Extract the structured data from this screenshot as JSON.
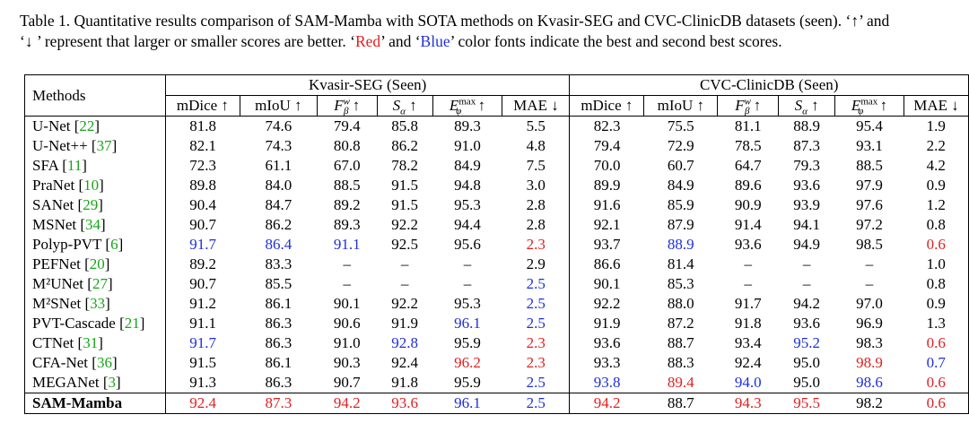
{
  "caption": {
    "line1": "Table 1. Quantitative results comparison of SAM-Mamba with SOTA methods on Kvasir-SEG and CVC-ClinicDB datasets (seen). ‘↑’ and",
    "line2_a": "‘↓ ’ represent that larger or smaller scores are better. ‘",
    "red_word": "Red",
    "line2_b": "’ and ‘",
    "blue_word": "Blue",
    "line2_c": "’ color fonts indicate the best and second best scores."
  },
  "table": {
    "methods_header": "Methods",
    "groups": [
      "Kvasir-SEG (Seen)",
      "CVC-ClinicDB (Seen)"
    ],
    "columns": [
      "mDice ↑",
      "mIoU ↑",
      "F_β^w ↑",
      "S_α ↑",
      "E_φ^max ↑",
      "MAE ↓"
    ],
    "rows": [
      {
        "name": "U-Net",
        "cite": "22",
        "bold": false,
        "vals": [
          "81.8",
          "74.6",
          "79.4",
          "85.8",
          "89.3",
          "5.5",
          "82.3",
          "75.5",
          "81.1",
          "88.9",
          "95.4",
          "1.9"
        ],
        "colors": [
          "",
          "",
          "",
          "",
          "",
          "",
          "",
          "",
          "",
          "",
          "",
          ""
        ]
      },
      {
        "name": "U-Net++",
        "cite": "37",
        "bold": false,
        "vals": [
          "82.1",
          "74.3",
          "80.8",
          "86.2",
          "91.0",
          "4.8",
          "79.4",
          "72.9",
          "78.5",
          "87.3",
          "93.1",
          "2.2"
        ],
        "colors": [
          "",
          "",
          "",
          "",
          "",
          "",
          "",
          "",
          "",
          "",
          "",
          ""
        ]
      },
      {
        "name": "SFA",
        "cite": "11",
        "bold": false,
        "vals": [
          "72.3",
          "61.1",
          "67.0",
          "78.2",
          "84.9",
          "7.5",
          "70.0",
          "60.7",
          "64.7",
          "79.3",
          "88.5",
          "4.2"
        ],
        "colors": [
          "",
          "",
          "",
          "",
          "",
          "",
          "",
          "",
          "",
          "",
          "",
          ""
        ]
      },
      {
        "name": "PraNet",
        "cite": "10",
        "bold": false,
        "vals": [
          "89.8",
          "84.0",
          "88.5",
          "91.5",
          "94.8",
          "3.0",
          "89.9",
          "84.9",
          "89.6",
          "93.6",
          "97.9",
          "0.9"
        ],
        "colors": [
          "",
          "",
          "",
          "",
          "",
          "",
          "",
          "",
          "",
          "",
          "",
          ""
        ]
      },
      {
        "name": "SANet",
        "cite": "29",
        "bold": false,
        "vals": [
          "90.4",
          "84.7",
          "89.2",
          "91.5",
          "95.3",
          "2.8",
          "91.6",
          "85.9",
          "90.9",
          "93.9",
          "97.6",
          "1.2"
        ],
        "colors": [
          "",
          "",
          "",
          "",
          "",
          "",
          "",
          "",
          "",
          "",
          "",
          ""
        ]
      },
      {
        "name": "MSNet",
        "cite": "34",
        "bold": false,
        "vals": [
          "90.7",
          "86.2",
          "89.3",
          "92.2",
          "94.4",
          "2.8",
          "92.1",
          "87.9",
          "91.4",
          "94.1",
          "97.2",
          "0.8"
        ],
        "colors": [
          "",
          "",
          "",
          "",
          "",
          "",
          "",
          "",
          "",
          "",
          "",
          ""
        ]
      },
      {
        "name": "Polyp-PVT",
        "cite": "6",
        "bold": false,
        "vals": [
          "91.7",
          "86.4",
          "91.1",
          "92.5",
          "95.6",
          "2.3",
          "93.7",
          "88.9",
          "93.6",
          "94.9",
          "98.5",
          "0.6"
        ],
        "colors": [
          "b",
          "b",
          "b",
          "",
          "",
          "r",
          "",
          "b",
          "",
          "",
          "",
          "r"
        ]
      },
      {
        "name": "PEFNet",
        "cite": "20",
        "bold": false,
        "vals": [
          "89.2",
          "83.3",
          "–",
          "–",
          "–",
          "2.9",
          "86.6",
          "81.4",
          "–",
          "–",
          "–",
          "1.0"
        ],
        "colors": [
          "",
          "",
          "",
          "",
          "",
          "",
          "",
          "",
          "",
          "",
          "",
          ""
        ]
      },
      {
        "name": "M²UNet",
        "cite": "27",
        "bold": false,
        "vals": [
          "90.7",
          "85.5",
          "–",
          "–",
          "–",
          "2.5",
          "90.1",
          "85.3",
          "–",
          "–",
          "–",
          "0.8"
        ],
        "colors": [
          "",
          "",
          "",
          "",
          "",
          "b",
          "",
          "",
          "",
          "",
          "",
          ""
        ]
      },
      {
        "name": "M²SNet",
        "cite": "33",
        "bold": false,
        "vals": [
          "91.2",
          "86.1",
          "90.1",
          "92.2",
          "95.3",
          "2.5",
          "92.2",
          "88.0",
          "91.7",
          "94.2",
          "97.0",
          "0.9"
        ],
        "colors": [
          "",
          "",
          "",
          "",
          "",
          "b",
          "",
          "",
          "",
          "",
          "",
          ""
        ]
      },
      {
        "name": "PVT-Cascade",
        "cite": "21",
        "bold": false,
        "vals": [
          "91.1",
          "86.3",
          "90.6",
          "91.9",
          "96.1",
          "2.5",
          "91.9",
          "87.2",
          "91.8",
          "93.6",
          "96.9",
          "1.3"
        ],
        "colors": [
          "",
          "",
          "",
          "",
          "b",
          "b",
          "",
          "",
          "",
          "",
          "",
          ""
        ]
      },
      {
        "name": "CTNet",
        "cite": "31",
        "bold": false,
        "vals": [
          "91.7",
          "86.3",
          "91.0",
          "92.8",
          "95.9",
          "2.3",
          "93.6",
          "88.7",
          "93.4",
          "95.2",
          "98.3",
          "0.6"
        ],
        "colors": [
          "b",
          "",
          "",
          "b",
          "",
          "r",
          "",
          "",
          "",
          "b",
          "",
          "r"
        ]
      },
      {
        "name": "CFA-Net",
        "cite": "36",
        "bold": false,
        "vals": [
          "91.5",
          "86.1",
          "90.3",
          "92.4",
          "96.2",
          "2.3",
          "93.3",
          "88.3",
          "92.4",
          "95.0",
          "98.9",
          "0.7"
        ],
        "colors": [
          "",
          "",
          "",
          "",
          "r",
          "r",
          "",
          "",
          "",
          "",
          "r",
          "b"
        ]
      },
      {
        "name": "MEGANet",
        "cite": "3",
        "bold": false,
        "vals": [
          "91.3",
          "86.3",
          "90.7",
          "91.8",
          "95.9",
          "2.5",
          "93.8",
          "89.4",
          "94.0",
          "95.0",
          "98.6",
          "0.6"
        ],
        "colors": [
          "",
          "",
          "",
          "",
          "",
          "b",
          "b",
          "r",
          "b",
          "",
          "b",
          "r"
        ]
      },
      {
        "name": "SAM-Mamba",
        "cite": "",
        "bold": true,
        "vals": [
          "92.4",
          "87.3",
          "94.2",
          "93.6",
          "96.1",
          "2.5",
          "94.2",
          "88.7",
          "94.3",
          "95.5",
          "98.2",
          "0.6"
        ],
        "colors": [
          "r",
          "r",
          "r",
          "r",
          "b",
          "b",
          "r",
          "",
          "r",
          "r",
          "",
          "r"
        ]
      }
    ]
  }
}
